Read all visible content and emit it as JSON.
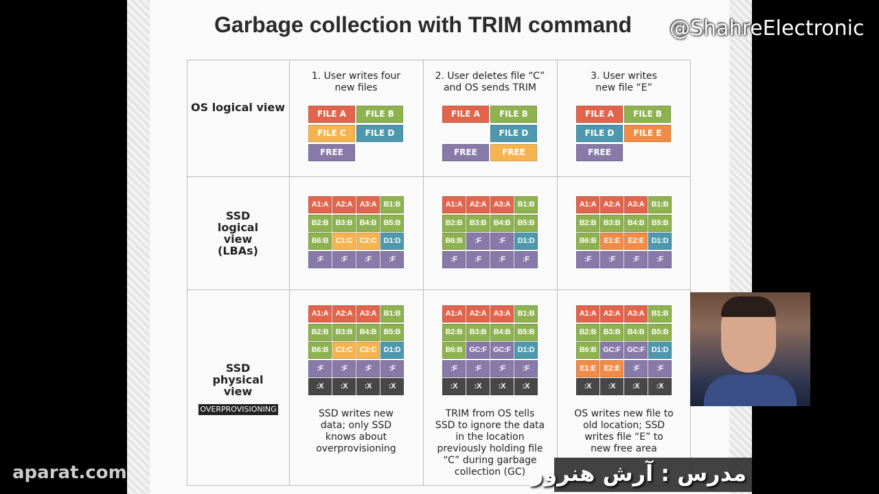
{
  "title": "Garbage collection with TRIM command",
  "watermark": "@ShahreElectronic",
  "site_logo": "aparat.com",
  "presenter_caption": "مدرس : آرش هنرور",
  "colors": {
    "A": "#e0654c",
    "B": "#8db24f",
    "C": "#f6b450",
    "D": "#4e98ad",
    "E": "#f08c48",
    "F": "#8779a8",
    "X": "#474747"
  },
  "row_labels": [
    "OS logical view",
    "SSD logical view (LBAs)",
    "SSD physical view"
  ],
  "overprovisioning_label": "OVERPROVISIONING",
  "steps": [
    {
      "header": [
        "1. User writes four",
        "new files"
      ],
      "files": [
        [
          "FILE A",
          "A"
        ],
        [
          "FILE B",
          "B"
        ],
        [
          "FILE C",
          "C"
        ],
        [
          "FILE D",
          "D"
        ],
        [
          "FREE",
          "F"
        ],
        null
      ],
      "lba": [
        "A1:A",
        "A2:A",
        "A3:A",
        "B1:B",
        "B2:B",
        "B3:B",
        "B4:B",
        "B5:B",
        "B6:B",
        "C1:C",
        "C2:C",
        "D1:D",
        ":F",
        ":F",
        ":F",
        ":F"
      ],
      "physical": [
        "A1:A",
        "A2:A",
        "A3:A",
        "B1:B",
        "B2:B",
        "B3:B",
        "B4:B",
        "B5:B",
        "B6:B",
        "C1:C",
        "C2:C",
        "D1:D",
        ":F",
        ":F",
        ":F",
        ":F",
        ":X",
        ":X",
        ":X",
        ":X"
      ],
      "caption": [
        "SSD writes new",
        "data; only SSD",
        "knows about",
        "overprovisioning"
      ]
    },
    {
      "header": [
        "2. User deletes file “C”",
        "and OS sends TRIM"
      ],
      "files": [
        [
          "FILE A",
          "A"
        ],
        [
          "FILE B",
          "B"
        ],
        null,
        [
          "FILE D",
          "D"
        ],
        [
          "FREE",
          "F"
        ],
        [
          "FREE",
          "C"
        ]
      ],
      "lba": [
        "A1:A",
        "A2:A",
        "A3:A",
        "B1:B",
        "B2:B",
        "B3:B",
        "B4:B",
        "B5:B",
        "B6:B",
        ":F",
        ":F",
        "D1:D",
        ":F",
        ":F",
        ":F",
        ":F"
      ],
      "physical": [
        "A1:A",
        "A2:A",
        "A3:A",
        "B1:B",
        "B2:B",
        "B3:B",
        "B4:B",
        "B5:B",
        "B6:B",
        "GC:F",
        "GC:F",
        "D1:D",
        ":F",
        ":F",
        ":F",
        ":F",
        ":X",
        ":X",
        ":X",
        ":X"
      ],
      "caption": [
        "TRIM from OS tells",
        "SSD to ignore the data",
        "in the location",
        "previously holding file",
        "“C” during garbage",
        "collection (GC)"
      ]
    },
    {
      "header": [
        "3. User writes",
        "new file “E”"
      ],
      "files": [
        [
          "FILE A",
          "A"
        ],
        [
          "FILE B",
          "B"
        ],
        [
          "FILE D",
          "D"
        ],
        [
          "FILE E",
          "E"
        ],
        [
          "FREE",
          "F"
        ],
        null
      ],
      "lba": [
        "A1:A",
        "A2:A",
        "A3:A",
        "B1:B",
        "B2:B",
        "B3:B",
        "B4:B",
        "B5:B",
        "B6:B",
        "E1:E",
        "E2:E",
        "D1:D",
        ":F",
        ":F",
        ":F",
        ":F"
      ],
      "physical": [
        "A1:A",
        "A2:A",
        "A3:A",
        "B1:B",
        "B2:B",
        "B3:B",
        "B4:B",
        "B5:B",
        "B6:B",
        "GC:F",
        "GC:F",
        "D1:D",
        "E1:E",
        "E2:E",
        ":F",
        ":F",
        ":X",
        ":X",
        ":X",
        ":X"
      ],
      "caption": [
        "OS writes new file to",
        "old location; SSD",
        "writes file “E” to",
        "new free area"
      ]
    }
  ]
}
